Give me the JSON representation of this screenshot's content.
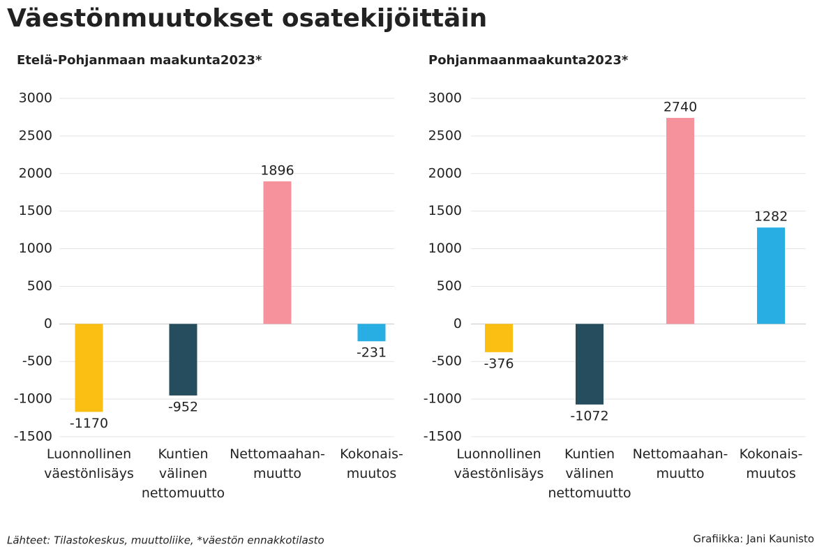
{
  "title": "Väestönmuutokset osatekijöittäin",
  "source": "Lähteet: Tilastokeskus, muuttoliike,  *väestön ennakkotilasto",
  "credit": "Grafiikka: Jani Kaunisto",
  "chart_data": [
    {
      "type": "bar",
      "title": "Etelä-Pohjanmaan maakunta2023*",
      "categories": [
        "Luonnollinen\nväestönlisäys",
        "Kuntien\nvälinen\nnettomuutto",
        "Nettomaahan-\nmuutto",
        "Kokonais-\nmuutos"
      ],
      "values": [
        -1170,
        -952,
        1896,
        -231
      ],
      "colors": [
        "#fbbf14",
        "#264d5e",
        "#f5929b",
        "#29aee3"
      ],
      "ylim": [
        -1500,
        3000
      ],
      "yticks": [
        -1500,
        -1000,
        -500,
        0,
        500,
        1000,
        1500,
        2000,
        2500,
        3000
      ],
      "grid": true
    },
    {
      "type": "bar",
      "title": "Pohjanmaanmaakunta2023*",
      "categories": [
        "Luonnollinen\nväestönlisäys",
        "Kuntien\nvälinen\nnettomuutto",
        "Nettomaahan-\nmuutto",
        "Kokonais-\nmuutos"
      ],
      "values": [
        -376,
        -1072,
        2740,
        1282
      ],
      "colors": [
        "#fbbf14",
        "#264d5e",
        "#f5929b",
        "#29aee3"
      ],
      "ylim": [
        -1500,
        3000
      ],
      "yticks": [
        -1500,
        -1000,
        -500,
        0,
        500,
        1000,
        1500,
        2000,
        2500,
        3000
      ],
      "grid": true
    }
  ]
}
